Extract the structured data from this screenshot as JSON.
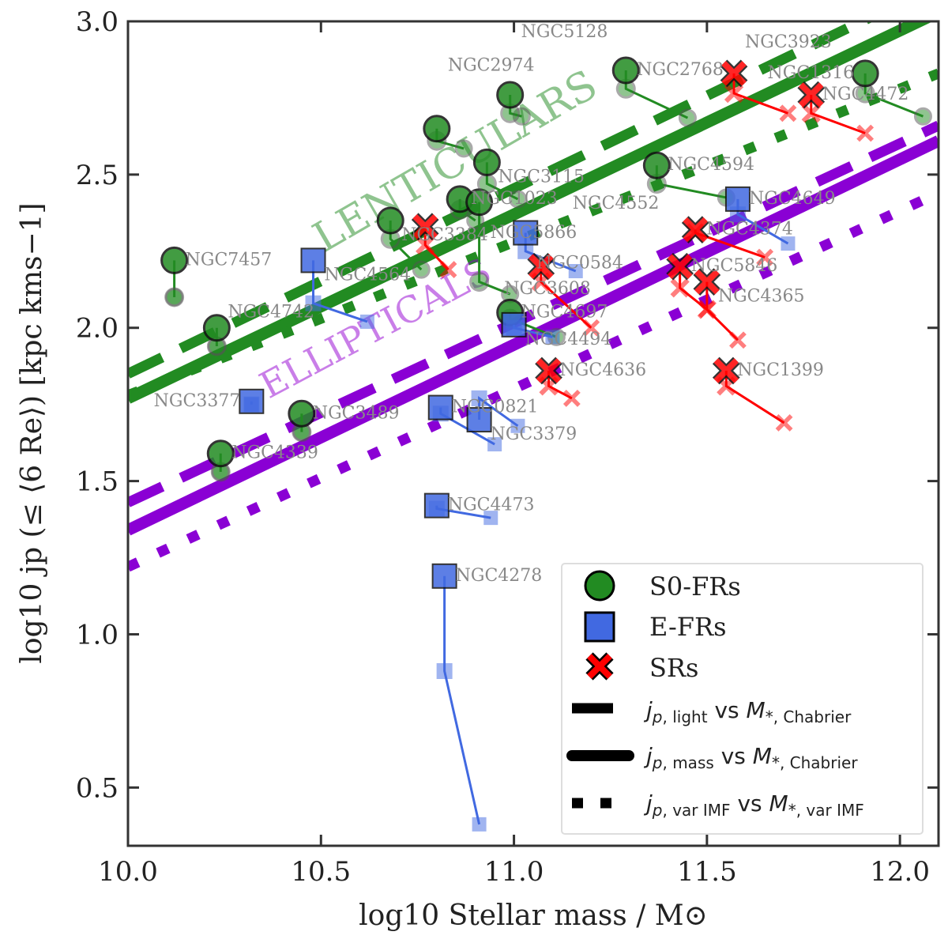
{
  "chart_data": {
    "type": "scatter",
    "xlabel": "log10 Stellar mass / M⊙",
    "ylabel": "log10 jp (≤ ⟨6 Re⟩) [kpc kms−1]",
    "xlim": [
      10.0,
      12.1
    ],
    "ylim": [
      0.31,
      3.0
    ],
    "xticks": [
      "10.0",
      "10.5",
      "11.0",
      "11.5",
      "12.0"
    ],
    "yticks": [
      "0.5",
      "1.0",
      "1.5",
      "2.0",
      "2.5",
      "3.0"
    ],
    "colors": {
      "S0-FR": "#228b22",
      "E-FR": "#4169e1",
      "SR": "#ff0000",
      "ellipticals": "#8a00d4"
    },
    "annotations": [
      {
        "text": "LENTICULARS",
        "color": "#228b22"
      },
      {
        "text": "ELLIPTICALS",
        "color": "#9400d3"
      }
    ],
    "legend": {
      "placement": "lower-right",
      "markers": [
        "S0-FRs",
        "E-FRs",
        "SRs"
      ],
      "lines": [
        {
          "style": "dashed",
          "j": "light",
          "m": "Chabrier"
        },
        {
          "style": "solid",
          "j": "mass",
          "m": "Chabrier"
        },
        {
          "style": "dotted",
          "j": "var IMF",
          "m": "var IMF"
        }
      ],
      "vs": "vs"
    },
    "fits": [
      {
        "group": "S0-FR",
        "style": "dashed",
        "x": [
          10.0,
          12.1
        ],
        "y": [
          1.85,
          3.12
        ]
      },
      {
        "group": "S0-FR",
        "style": "solid",
        "x": [
          10.0,
          12.1
        ],
        "y": [
          1.77,
          3.03
        ]
      },
      {
        "group": "S0-FR",
        "style": "dotted",
        "x": [
          10.0,
          12.1
        ],
        "y": [
          1.78,
          2.83
        ]
      },
      {
        "group": "E",
        "style": "dashed",
        "x": [
          10.0,
          12.1
        ],
        "y": [
          1.43,
          2.66
        ]
      },
      {
        "group": "E",
        "style": "solid",
        "x": [
          10.0,
          12.1
        ],
        "y": [
          1.34,
          2.61
        ]
      },
      {
        "group": "E",
        "style": "dotted",
        "x": [
          10.0,
          12.1
        ],
        "y": [
          1.22,
          2.44
        ]
      }
    ],
    "galaxies": [
      {
        "name": "NGC7457",
        "type": "S0-FR",
        "x": 10.12,
        "y_light": 2.22,
        "y_mass": 2.1,
        "x_var": 10.12,
        "y_var": 2.1
      },
      {
        "name": "NGC4742",
        "type": "S0-FR",
        "x": 10.23,
        "y_light": 2.0,
        "y_mass": 1.94,
        "x_var": 10.23,
        "y_var": 1.94
      },
      {
        "name": "NGC4339",
        "type": "S0-FR",
        "x": 10.24,
        "y_light": 1.59,
        "y_mass": 1.53,
        "x_var": 10.24,
        "y_var": 1.53
      },
      {
        "name": "NGC3489",
        "type": "S0-FR",
        "x": 10.45,
        "y_light": 1.72,
        "y_mass": 1.66,
        "x_var": 10.45,
        "y_var": 1.66
      },
      {
        "name": "NGC3384",
        "type": "S0-FR",
        "x": 10.68,
        "y_light": 2.35,
        "y_mass": 2.29,
        "x_var": 10.76,
        "y_var": 2.19
      },
      {
        "name": "NGC2974",
        "type": "S0-FR",
        "x": 10.8,
        "y_light": 2.65,
        "y_mass": 2.61,
        "x_var": 10.87,
        "y_var": 2.585
      },
      {
        "name": "NGC1023",
        "type": "S0-FR",
        "x": 10.86,
        "y_light": 2.42,
        "y_mass": 2.385,
        "x_var": 10.9,
        "y_var": 2.35
      },
      {
        "name": "NGC5866",
        "type": "S0-FR",
        "x": 10.91,
        "y_light": 2.41,
        "y_mass": 2.15,
        "x_var": 10.99,
        "y_var": 2.11
      },
      {
        "name": "NGC3115",
        "type": "S0-FR",
        "x": 10.93,
        "y_light": 2.54,
        "y_mass": 2.47,
        "x_var": 11.01,
        "y_var": 2.42
      },
      {
        "name": "NGC5128",
        "type": "S0-FR",
        "x": 10.99,
        "y_light": 2.76,
        "y_mass": 2.7,
        "x_var": 11.02,
        "y_var": 2.69
      },
      {
        "name": "NGC4697",
        "type": "S0-FR",
        "x": 10.99,
        "y_light": 2.05,
        "y_mass": 2.03,
        "x_var": 11.11,
        "y_var": 1.97
      },
      {
        "name": "NGC2768",
        "type": "S0-FR",
        "x": 11.29,
        "y_light": 2.84,
        "y_mass": 2.78,
        "x_var": 11.45,
        "y_var": 2.685
      },
      {
        "name": "NGC4594",
        "type": "S0-FR",
        "x": 11.37,
        "y_light": 2.53,
        "y_mass": 2.47,
        "x_var": 11.55,
        "y_var": 2.425
      },
      {
        "name": "NGC1316",
        "type": "S0-FR",
        "x": 11.91,
        "y_light": 2.83,
        "y_mass": 2.765,
        "x_var": 12.06,
        "y_var": 2.69
      },
      {
        "name": "NGC3377",
        "type": "E-FR",
        "x": 10.32,
        "y_light": 1.76,
        "y_mass": 1.75,
        "x_var": 10.32,
        "y_var": 1.75
      },
      {
        "name": "NGC4564",
        "type": "E-FR",
        "x": 10.48,
        "y_light": 2.22,
        "y_mass": 2.08,
        "x_var": 10.62,
        "y_var": 2.02
      },
      {
        "name": "NGC4473",
        "type": "E-FR",
        "x": 10.8,
        "y_light": 1.42,
        "y_mass": 1.41,
        "x_var": 10.94,
        "y_var": 1.38
      },
      {
        "name": "NGC4278",
        "type": "E-FR",
        "x": 10.82,
        "y_light": 1.19,
        "y_mass": 0.88,
        "x_var": 10.91,
        "y_var": 0.38
      },
      {
        "name": "NGC0821",
        "type": "E-FR",
        "x": 10.81,
        "y_light": 1.74,
        "y_mass": 1.72,
        "x_var": 10.95,
        "y_var": 1.62
      },
      {
        "name": "NGC3379",
        "type": "E-FR",
        "x": 10.91,
        "y_light": 1.7,
        "y_mass": 1.77,
        "x_var": 11.01,
        "y_var": 1.68
      },
      {
        "name": "NGC4494",
        "type": "E-FR",
        "x": 11.0,
        "y_light": 2.01,
        "y_mass": 2.0,
        "x_var": 11.1,
        "y_var": 1.97
      },
      {
        "name": "NGC0584",
        "type": "E-FR",
        "x": 11.03,
        "y_light": 2.31,
        "y_mass": 2.25,
        "x_var": 11.16,
        "y_var": 2.185
      },
      {
        "name": "NGC4649",
        "type": "E-FR",
        "x": 11.58,
        "y_light": 2.42,
        "y_mass": 2.37,
        "x_var": 11.71,
        "y_var": 2.275
      },
      {
        "name": "NGC3608",
        "type": "SR",
        "x": 10.77,
        "y_light": 2.33,
        "y_mass": 2.27,
        "x_var": 10.83,
        "y_var": 2.19
      },
      {
        "name": "NGC4552",
        "type": "SR",
        "x": 11.07,
        "y_light": 2.2,
        "y_mass": 2.15,
        "x_var": 11.2,
        "y_var": 2.0
      },
      {
        "name": "NGC4636",
        "type": "SR",
        "x": 11.09,
        "y_light": 1.86,
        "y_mass": 1.81,
        "x_var": 11.15,
        "y_var": 1.77
      },
      {
        "name": "NGC5846",
        "type": "SR",
        "x": 11.43,
        "y_light": 2.2,
        "y_mass": 2.13,
        "x_var": 11.5,
        "y_var": 2.06
      },
      {
        "name": "NGC4374",
        "type": "SR",
        "x": 11.47,
        "y_light": 2.32,
        "y_mass": 2.31,
        "x_var": 11.65,
        "y_var": 2.23
      },
      {
        "name": "NGC4365",
        "type": "SR",
        "x": 11.5,
        "y_light": 2.15,
        "y_mass": 2.06,
        "x_var": 11.58,
        "y_var": 1.96
      },
      {
        "name": "NGC1399",
        "type": "SR",
        "x": 11.55,
        "y_light": 1.86,
        "y_mass": 1.81,
        "x_var": 11.7,
        "y_var": 1.69
      },
      {
        "name": "NGC3923",
        "type": "SR",
        "x": 11.57,
        "y_light": 2.83,
        "y_mass": 2.765,
        "x_var": 11.71,
        "y_var": 2.7
      },
      {
        "name": "NGC4472",
        "type": "SR",
        "x": 11.77,
        "y_light": 2.76,
        "y_mass": 2.7,
        "x_var": 11.91,
        "y_var": 2.635
      }
    ]
  }
}
